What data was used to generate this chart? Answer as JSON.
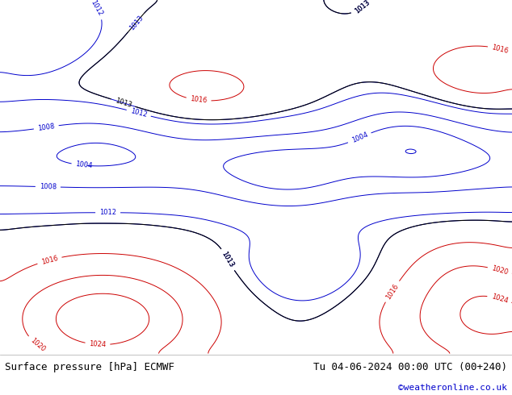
{
  "title_left": "Surface pressure [hPa] ECMWF",
  "title_right": "Tu 04-06-2024 00:00 UTC (00+240)",
  "watermark": "©weatheronline.co.uk",
  "watermark_color": "#0000cc",
  "bg_color": "#ffffff",
  "land_color": "#c8e8b8",
  "ocean_color": "#ffffff",
  "border_color": "#888888",
  "coastline_color": "#555555",
  "footer_bg": "#d0d0d0",
  "text_color": "#000000",
  "footer_fontsize": 9,
  "watermark_fontsize": 8,
  "fig_width": 6.34,
  "fig_height": 4.9,
  "dpi": 100,
  "extent": [
    -20,
    55,
    -40,
    42
  ],
  "blue_levels": [
    1000,
    1004,
    1008,
    1012,
    1013
  ],
  "red_levels": [
    1016,
    1020,
    1024,
    1028
  ],
  "black_levels": [
    1013
  ],
  "contour_linewidth": 0.7,
  "label_fontsize": 6
}
